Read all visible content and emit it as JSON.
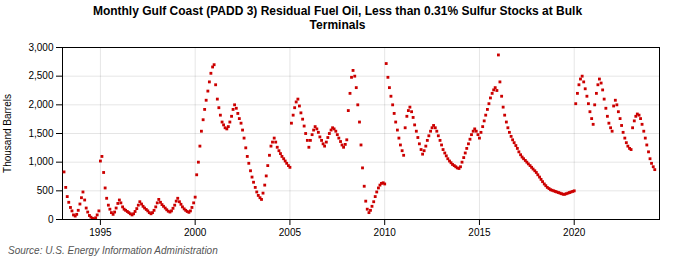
{
  "chart_data": {
    "type": "scatter",
    "title": "Monthly Gulf Coast (PADD 3) Residual Fuel Oil, Less than 0.31% Sulfur Stocks at Bulk\nTerminals",
    "ylabel": "Thousand Barrels",
    "source": "Source: U.S. Energy Information Administration",
    "color": "#cc0000",
    "marker": "square",
    "grid": true,
    "xlim": [
      1993.0,
      2024.5
    ],
    "xticks": [
      1995,
      2000,
      2005,
      2010,
      2015,
      2020
    ],
    "ylim": [
      0,
      3000
    ],
    "yticks": [
      0,
      500,
      {
        "value": 1000,
        "label": "1,000"
      },
      {
        "value": 1500,
        "label": "1,500"
      },
      {
        "value": 2000,
        "label": "2,000"
      },
      {
        "value": 2500,
        "label": "2,500"
      },
      {
        "value": 3000,
        "label": "3,000"
      }
    ],
    "x": [
      1993.08,
      1993.17,
      1993.25,
      1993.33,
      1993.42,
      1993.5,
      1993.58,
      1993.67,
      1993.75,
      1993.83,
      1993.92,
      1994.0,
      1994.08,
      1994.17,
      1994.25,
      1994.33,
      1994.42,
      1994.5,
      1994.58,
      1994.67,
      1994.75,
      1994.83,
      1994.92,
      1995.0,
      1995.08,
      1995.17,
      1995.25,
      1995.33,
      1995.42,
      1995.5,
      1995.58,
      1995.67,
      1995.75,
      1995.83,
      1995.92,
      1996.0,
      1996.08,
      1996.17,
      1996.25,
      1996.33,
      1996.42,
      1996.5,
      1996.58,
      1996.67,
      1996.75,
      1996.83,
      1996.92,
      1997.0,
      1997.08,
      1997.17,
      1997.25,
      1997.33,
      1997.42,
      1997.5,
      1997.58,
      1997.67,
      1997.75,
      1997.83,
      1997.92,
      1998.0,
      1998.08,
      1998.17,
      1998.25,
      1998.33,
      1998.42,
      1998.5,
      1998.58,
      1998.67,
      1998.75,
      1998.83,
      1998.92,
      1999.0,
      1999.08,
      1999.17,
      1999.25,
      1999.33,
      1999.42,
      1999.5,
      1999.58,
      1999.67,
      1999.75,
      1999.83,
      1999.92,
      2000.0,
      2000.08,
      2000.17,
      2000.25,
      2000.33,
      2000.42,
      2000.5,
      2000.58,
      2000.67,
      2000.75,
      2000.83,
      2000.92,
      2001.0,
      2001.08,
      2001.17,
      2001.25,
      2001.33,
      2001.42,
      2001.5,
      2001.58,
      2001.67,
      2001.75,
      2001.83,
      2001.92,
      2002.0,
      2002.08,
      2002.17,
      2002.25,
      2002.33,
      2002.42,
      2002.5,
      2002.58,
      2002.67,
      2002.75,
      2002.83,
      2002.92,
      2003.0,
      2003.08,
      2003.17,
      2003.25,
      2003.33,
      2003.42,
      2003.5,
      2003.58,
      2003.67,
      2003.75,
      2003.83,
      2003.92,
      2004.0,
      2004.08,
      2004.17,
      2004.25,
      2004.33,
      2004.42,
      2004.5,
      2004.58,
      2004.67,
      2004.75,
      2004.83,
      2004.92,
      2005.0,
      2005.08,
      2005.17,
      2005.25,
      2005.33,
      2005.42,
      2005.5,
      2005.58,
      2005.67,
      2005.75,
      2005.83,
      2005.92,
      2006.0,
      2006.08,
      2006.17,
      2006.25,
      2006.33,
      2006.42,
      2006.5,
      2006.58,
      2006.67,
      2006.75,
      2006.83,
      2006.92,
      2007.0,
      2007.08,
      2007.17,
      2007.25,
      2007.33,
      2007.42,
      2007.5,
      2007.58,
      2007.67,
      2007.75,
      2007.83,
      2007.92,
      2008.0,
      2008.08,
      2008.17,
      2008.25,
      2008.33,
      2008.42,
      2008.5,
      2008.58,
      2008.67,
      2008.75,
      2008.83,
      2008.92,
      2009.0,
      2009.08,
      2009.17,
      2009.25,
      2009.33,
      2009.42,
      2009.5,
      2009.58,
      2009.67,
      2009.75,
      2009.83,
      2009.92,
      2010.0,
      2010.08,
      2010.17,
      2010.25,
      2010.33,
      2010.42,
      2010.5,
      2010.58,
      2010.67,
      2010.75,
      2010.83,
      2010.92,
      2011.0,
      2011.08,
      2011.17,
      2011.25,
      2011.33,
      2011.42,
      2011.5,
      2011.58,
      2011.67,
      2011.75,
      2011.83,
      2011.92,
      2012.0,
      2012.08,
      2012.17,
      2012.25,
      2012.33,
      2012.42,
      2012.5,
      2012.58,
      2012.67,
      2012.75,
      2012.83,
      2012.92,
      2013.0,
      2013.08,
      2013.17,
      2013.25,
      2013.33,
      2013.42,
      2013.5,
      2013.58,
      2013.67,
      2013.75,
      2013.83,
      2013.92,
      2014.0,
      2014.08,
      2014.17,
      2014.25,
      2014.33,
      2014.42,
      2014.5,
      2014.58,
      2014.67,
      2014.75,
      2014.83,
      2014.92,
      2015.0,
      2015.08,
      2015.17,
      2015.25,
      2015.33,
      2015.42,
      2015.5,
      2015.58,
      2015.67,
      2015.75,
      2015.83,
      2015.92,
      2016.0,
      2016.08,
      2016.17,
      2016.25,
      2016.33,
      2016.42,
      2016.5,
      2016.58,
      2016.67,
      2016.75,
      2016.83,
      2016.92,
      2017.0,
      2017.08,
      2017.17,
      2017.25,
      2017.33,
      2017.42,
      2017.5,
      2017.58,
      2017.67,
      2017.75,
      2017.83,
      2017.92,
      2018.0,
      2018.08,
      2018.17,
      2018.25,
      2018.33,
      2018.42,
      2018.5,
      2018.58,
      2018.67,
      2018.75,
      2018.83,
      2018.92,
      2019.0,
      2019.08,
      2019.17,
      2019.25,
      2019.33,
      2019.42,
      2019.5,
      2019.58,
      2019.67,
      2019.75,
      2019.83,
      2019.92,
      2020.0,
      2020.08,
      2020.17,
      2020.25,
      2020.33,
      2020.42,
      2020.5,
      2020.58,
      2020.67,
      2020.75,
      2020.83,
      2020.92,
      2021.0,
      2021.08,
      2021.17,
      2021.25,
      2021.33,
      2021.42,
      2021.5,
      2021.58,
      2021.67,
      2021.75,
      2021.83,
      2021.92,
      2022.0,
      2022.08,
      2022.17,
      2022.25,
      2022.33,
      2022.42,
      2022.5,
      2022.58,
      2022.67,
      2022.75,
      2022.83,
      2022.92,
      2023.0,
      2023.08,
      2023.17,
      2023.25,
      2023.33,
      2023.42,
      2023.5,
      2023.58,
      2023.67,
      2023.75,
      2023.83,
      2023.92,
      2024.0,
      2024.08,
      2024.17,
      2024.25
    ],
    "values": [
      830,
      560,
      400,
      300,
      210,
      150,
      80,
      60,
      90,
      160,
      270,
      380,
      480,
      340,
      200,
      130,
      70,
      40,
      20,
      10,
      30,
      80,
      150,
      1020,
      1100,
      820,
      550,
      370,
      250,
      180,
      120,
      90,
      130,
      200,
      280,
      340,
      290,
      220,
      180,
      160,
      140,
      120,
      100,
      80,
      100,
      140,
      190,
      250,
      310,
      270,
      230,
      200,
      175,
      150,
      120,
      100,
      120,
      160,
      220,
      290,
      350,
      300,
      260,
      230,
      200,
      170,
      145,
      130,
      150,
      195,
      250,
      320,
      370,
      310,
      265,
      220,
      185,
      160,
      140,
      125,
      150,
      210,
      290,
      390,
      780,
      1000,
      1280,
      1540,
      1740,
      1920,
      2080,
      2240,
      2400,
      2550,
      2660,
      2700,
      2350,
      2100,
      1950,
      1820,
      1700,
      1650,
      1600,
      1580,
      1620,
      1700,
      1800,
      1920,
      2000,
      1940,
      1850,
      1760,
      1680,
      1560,
      1420,
      1250,
      1100,
      980,
      850,
      740,
      650,
      560,
      480,
      420,
      380,
      350,
      460,
      600,
      760,
      940,
      1120,
      1280,
      1350,
      1420,
      1350,
      1260,
      1200,
      1150,
      1100,
      1060,
      1020,
      980,
      940,
      910,
      1680,
      1820,
      1950,
      2050,
      2100,
      1980,
      1860,
      1750,
      1630,
      1500,
      1380,
      1260,
      1380,
      1480,
      1560,
      1620,
      1580,
      1520,
      1440,
      1380,
      1320,
      1280,
      1350,
      1430,
      1500,
      1560,
      1600,
      1580,
      1540,
      1480,
      1420,
      1360,
      1300,
      1260,
      1310,
      1390,
      1900,
      2200,
      2480,
      2600,
      2500,
      2300,
      2000,
      1700,
      1300,
      900,
      580,
      320,
      180,
      120,
      160,
      230,
      310,
      400,
      480,
      550,
      600,
      630,
      640,
      620,
      2720,
      2480,
      2300,
      2150,
      2000,
      1850,
      1700,
      1560,
      1420,
      1300,
      1200,
      1120,
      1600,
      1800,
      1900,
      1960,
      1880,
      1780,
      1650,
      1540,
      1430,
      1320,
      1220,
      1140,
      1200,
      1280,
      1380,
      1460,
      1540,
      1600,
      1640,
      1600,
      1540,
      1460,
      1380,
      1300,
      1220,
      1160,
      1110,
      1060,
      1020,
      990,
      960,
      940,
      920,
      900,
      890,
      920,
      1000,
      1080,
      1160,
      1240,
      1320,
      1400,
      1480,
      1540,
      1580,
      1540,
      1480,
      1420,
      1520,
      1620,
      1720,
      1820,
      1920,
      2020,
      2120,
      2200,
      2260,
      2300,
      2250,
      2870,
      2400,
      2150,
      1960,
      1820,
      1700,
      1600,
      1520,
      1450,
      1390,
      1340,
      1290,
      1240,
      1180,
      1130,
      1090,
      1060,
      1030,
      1000,
      970,
      940,
      910,
      880,
      850,
      820,
      780,
      740,
      700,
      660,
      620,
      590,
      560,
      540,
      520,
      510,
      500,
      490,
      480,
      470,
      460,
      450,
      440,
      440,
      450,
      460,
      470,
      480,
      490,
      500,
      2020,
      2200,
      2350,
      2450,
      2500,
      2400,
      2280,
      2150,
      2020,
      1880,
      1760,
      1660,
      2000,
      2200,
      2350,
      2450,
      2380,
      2260,
      2100,
      1940,
      1800,
      1680,
      1600,
      1540,
      1980,
      2080,
      2000,
      1880,
      1760,
      1640,
      1520,
      1420,
      1340,
      1280,
      1240,
      1220,
      1600,
      1720,
      1800,
      1840,
      1820,
      1760,
      1660,
      1540,
      1420,
      1300,
      1180,
      1060,
      980,
      920,
      870
    ]
  }
}
